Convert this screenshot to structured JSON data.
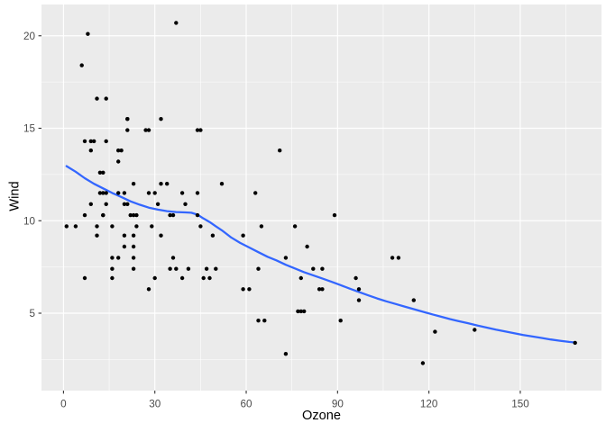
{
  "figure": {
    "background": "#FFFFFF"
  },
  "chart_data": {
    "type": "scatter",
    "title": "",
    "xlabel": "Ozone",
    "ylabel": "Wind",
    "xlim": [
      -7.2,
      176.7
    ],
    "ylim": [
      0.8,
      21.7
    ],
    "grid": true,
    "legend": false,
    "x_ticks": [
      0,
      30,
      60,
      90,
      120,
      150
    ],
    "x_minor_ticks": [
      15,
      45,
      75,
      105,
      135,
      165
    ],
    "y_ticks": [
      5,
      10,
      15,
      20
    ],
    "y_minor_ticks": [
      2.5,
      7.5,
      12.5,
      17.5
    ],
    "colors": {
      "panel_background": "#EBEBEB",
      "grid": "#FFFFFF",
      "point": "#000000",
      "smooth_line": "#3366FF",
      "tick_mark": "#333333",
      "tick_label": "#4D4D4D",
      "axis_title": "#000000"
    },
    "points": [
      [
        41,
        7.4
      ],
      [
        36,
        8.0
      ],
      [
        12,
        12.6
      ],
      [
        18,
        11.5
      ],
      [
        28,
        14.9
      ],
      [
        23,
        8.6
      ],
      [
        19,
        13.8
      ],
      [
        8,
        20.1
      ],
      [
        7,
        6.9
      ],
      [
        16,
        9.7
      ],
      [
        11,
        9.2
      ],
      [
        14,
        10.9
      ],
      [
        18,
        13.2
      ],
      [
        14,
        11.5
      ],
      [
        34,
        12.0
      ],
      [
        6,
        18.4
      ],
      [
        30,
        11.5
      ],
      [
        11,
        9.7
      ],
      [
        1,
        9.7
      ],
      [
        11,
        16.6
      ],
      [
        4,
        9.7
      ],
      [
        32,
        12.0
      ],
      [
        23,
        12.0
      ],
      [
        45,
        14.9
      ],
      [
        115,
        5.7
      ],
      [
        37,
        7.4
      ],
      [
        29,
        9.7
      ],
      [
        71,
        13.8
      ],
      [
        39,
        11.5
      ],
      [
        23,
        8.0
      ],
      [
        21,
        14.9
      ],
      [
        37,
        20.7
      ],
      [
        20,
        9.2
      ],
      [
        12,
        11.5
      ],
      [
        13,
        10.3
      ],
      [
        135,
        4.1
      ],
      [
        49,
        9.2
      ],
      [
        32,
        9.2
      ],
      [
        64,
        4.6
      ],
      [
        40,
        10.9
      ],
      [
        77,
        5.1
      ],
      [
        97,
        6.3
      ],
      [
        97,
        5.7
      ],
      [
        85,
        7.4
      ],
      [
        10,
        14.3
      ],
      [
        27,
        14.9
      ],
      [
        7,
        14.3
      ],
      [
        48,
        6.9
      ],
      [
        35,
        10.3
      ],
      [
        61,
        6.3
      ],
      [
        79,
        5.1
      ],
      [
        63,
        11.5
      ],
      [
        16,
        6.9
      ],
      [
        80,
        8.6
      ],
      [
        108,
        8.0
      ],
      [
        20,
        8.6
      ],
      [
        52,
        12.0
      ],
      [
        82,
        7.4
      ],
      [
        50,
        7.4
      ],
      [
        64,
        7.4
      ],
      [
        59,
        9.2
      ],
      [
        39,
        6.9
      ],
      [
        9,
        13.8
      ],
      [
        16,
        7.4
      ],
      [
        78,
        6.9
      ],
      [
        35,
        7.4
      ],
      [
        66,
        4.6
      ],
      [
        122,
        4.0
      ],
      [
        89,
        10.3
      ],
      [
        110,
        8.0
      ],
      [
        44,
        11.5
      ],
      [
        28,
        11.5
      ],
      [
        65,
        9.7
      ],
      [
        22,
        10.3
      ],
      [
        59,
        6.3
      ],
      [
        23,
        7.4
      ],
      [
        31,
        10.9
      ],
      [
        44,
        10.3
      ],
      [
        21,
        15.5
      ],
      [
        9,
        14.3
      ],
      [
        45,
        9.7
      ],
      [
        168,
        3.4
      ],
      [
        73,
        8.0
      ],
      [
        76,
        9.7
      ],
      [
        118,
        2.3
      ],
      [
        84,
        6.3
      ],
      [
        85,
        6.3
      ],
      [
        96,
        6.9
      ],
      [
        78,
        5.1
      ],
      [
        73,
        2.8
      ],
      [
        91,
        4.6
      ],
      [
        47,
        7.4
      ],
      [
        32,
        15.5
      ],
      [
        20,
        10.9
      ],
      [
        23,
        10.3
      ],
      [
        21,
        10.9
      ],
      [
        24,
        9.7
      ],
      [
        44,
        14.9
      ],
      [
        21,
        15.5
      ],
      [
        28,
        6.3
      ],
      [
        9,
        10.9
      ],
      [
        13,
        11.5
      ],
      [
        46,
        6.9
      ],
      [
        18,
        13.8
      ],
      [
        13,
        10.3
      ],
      [
        24,
        10.3
      ],
      [
        16,
        8.0
      ],
      [
        13,
        12.6
      ],
      [
        23,
        9.2
      ],
      [
        36,
        10.3
      ],
      [
        7,
        10.3
      ],
      [
        14,
        16.6
      ],
      [
        30,
        6.9
      ],
      [
        14,
        14.3
      ],
      [
        18,
        8.0
      ],
      [
        20,
        11.5
      ]
    ],
    "smooth_line": [
      [
        1,
        12.95
      ],
      [
        4,
        12.65
      ],
      [
        7,
        12.3
      ],
      [
        10,
        12.0
      ],
      [
        13,
        11.75
      ],
      [
        16,
        11.5
      ],
      [
        19,
        11.28
      ],
      [
        22,
        11.05
      ],
      [
        25,
        10.87
      ],
      [
        28,
        10.71
      ],
      [
        31,
        10.6
      ],
      [
        34,
        10.52
      ],
      [
        37,
        10.47
      ],
      [
        40,
        10.45
      ],
      [
        42,
        10.43
      ],
      [
        44,
        10.33
      ],
      [
        46,
        10.12
      ],
      [
        48,
        9.93
      ],
      [
        50,
        9.7
      ],
      [
        52,
        9.48
      ],
      [
        55,
        9.1
      ],
      [
        58,
        8.8
      ],
      [
        61,
        8.55
      ],
      [
        64,
        8.3
      ],
      [
        67,
        8.05
      ],
      [
        70,
        7.85
      ],
      [
        73,
        7.62
      ],
      [
        76,
        7.42
      ],
      [
        79,
        7.22
      ],
      [
        82,
        7.05
      ],
      [
        85,
        6.88
      ],
      [
        88,
        6.7
      ],
      [
        91,
        6.52
      ],
      [
        94,
        6.33
      ],
      [
        97,
        6.15
      ],
      [
        100,
        5.97
      ],
      [
        103,
        5.8
      ],
      [
        106,
        5.64
      ],
      [
        109,
        5.5
      ],
      [
        112,
        5.36
      ],
      [
        115,
        5.22
      ],
      [
        118,
        5.08
      ],
      [
        121,
        4.94
      ],
      [
        124,
        4.81
      ],
      [
        127,
        4.68
      ],
      [
        130,
        4.56
      ],
      [
        133,
        4.45
      ],
      [
        136,
        4.33
      ],
      [
        139,
        4.22
      ],
      [
        142,
        4.11
      ],
      [
        145,
        4.01
      ],
      [
        148,
        3.92
      ],
      [
        151,
        3.82
      ],
      [
        154,
        3.74
      ],
      [
        157,
        3.66
      ],
      [
        160,
        3.58
      ],
      [
        163,
        3.51
      ],
      [
        166,
        3.45
      ],
      [
        168,
        3.42
      ]
    ]
  }
}
